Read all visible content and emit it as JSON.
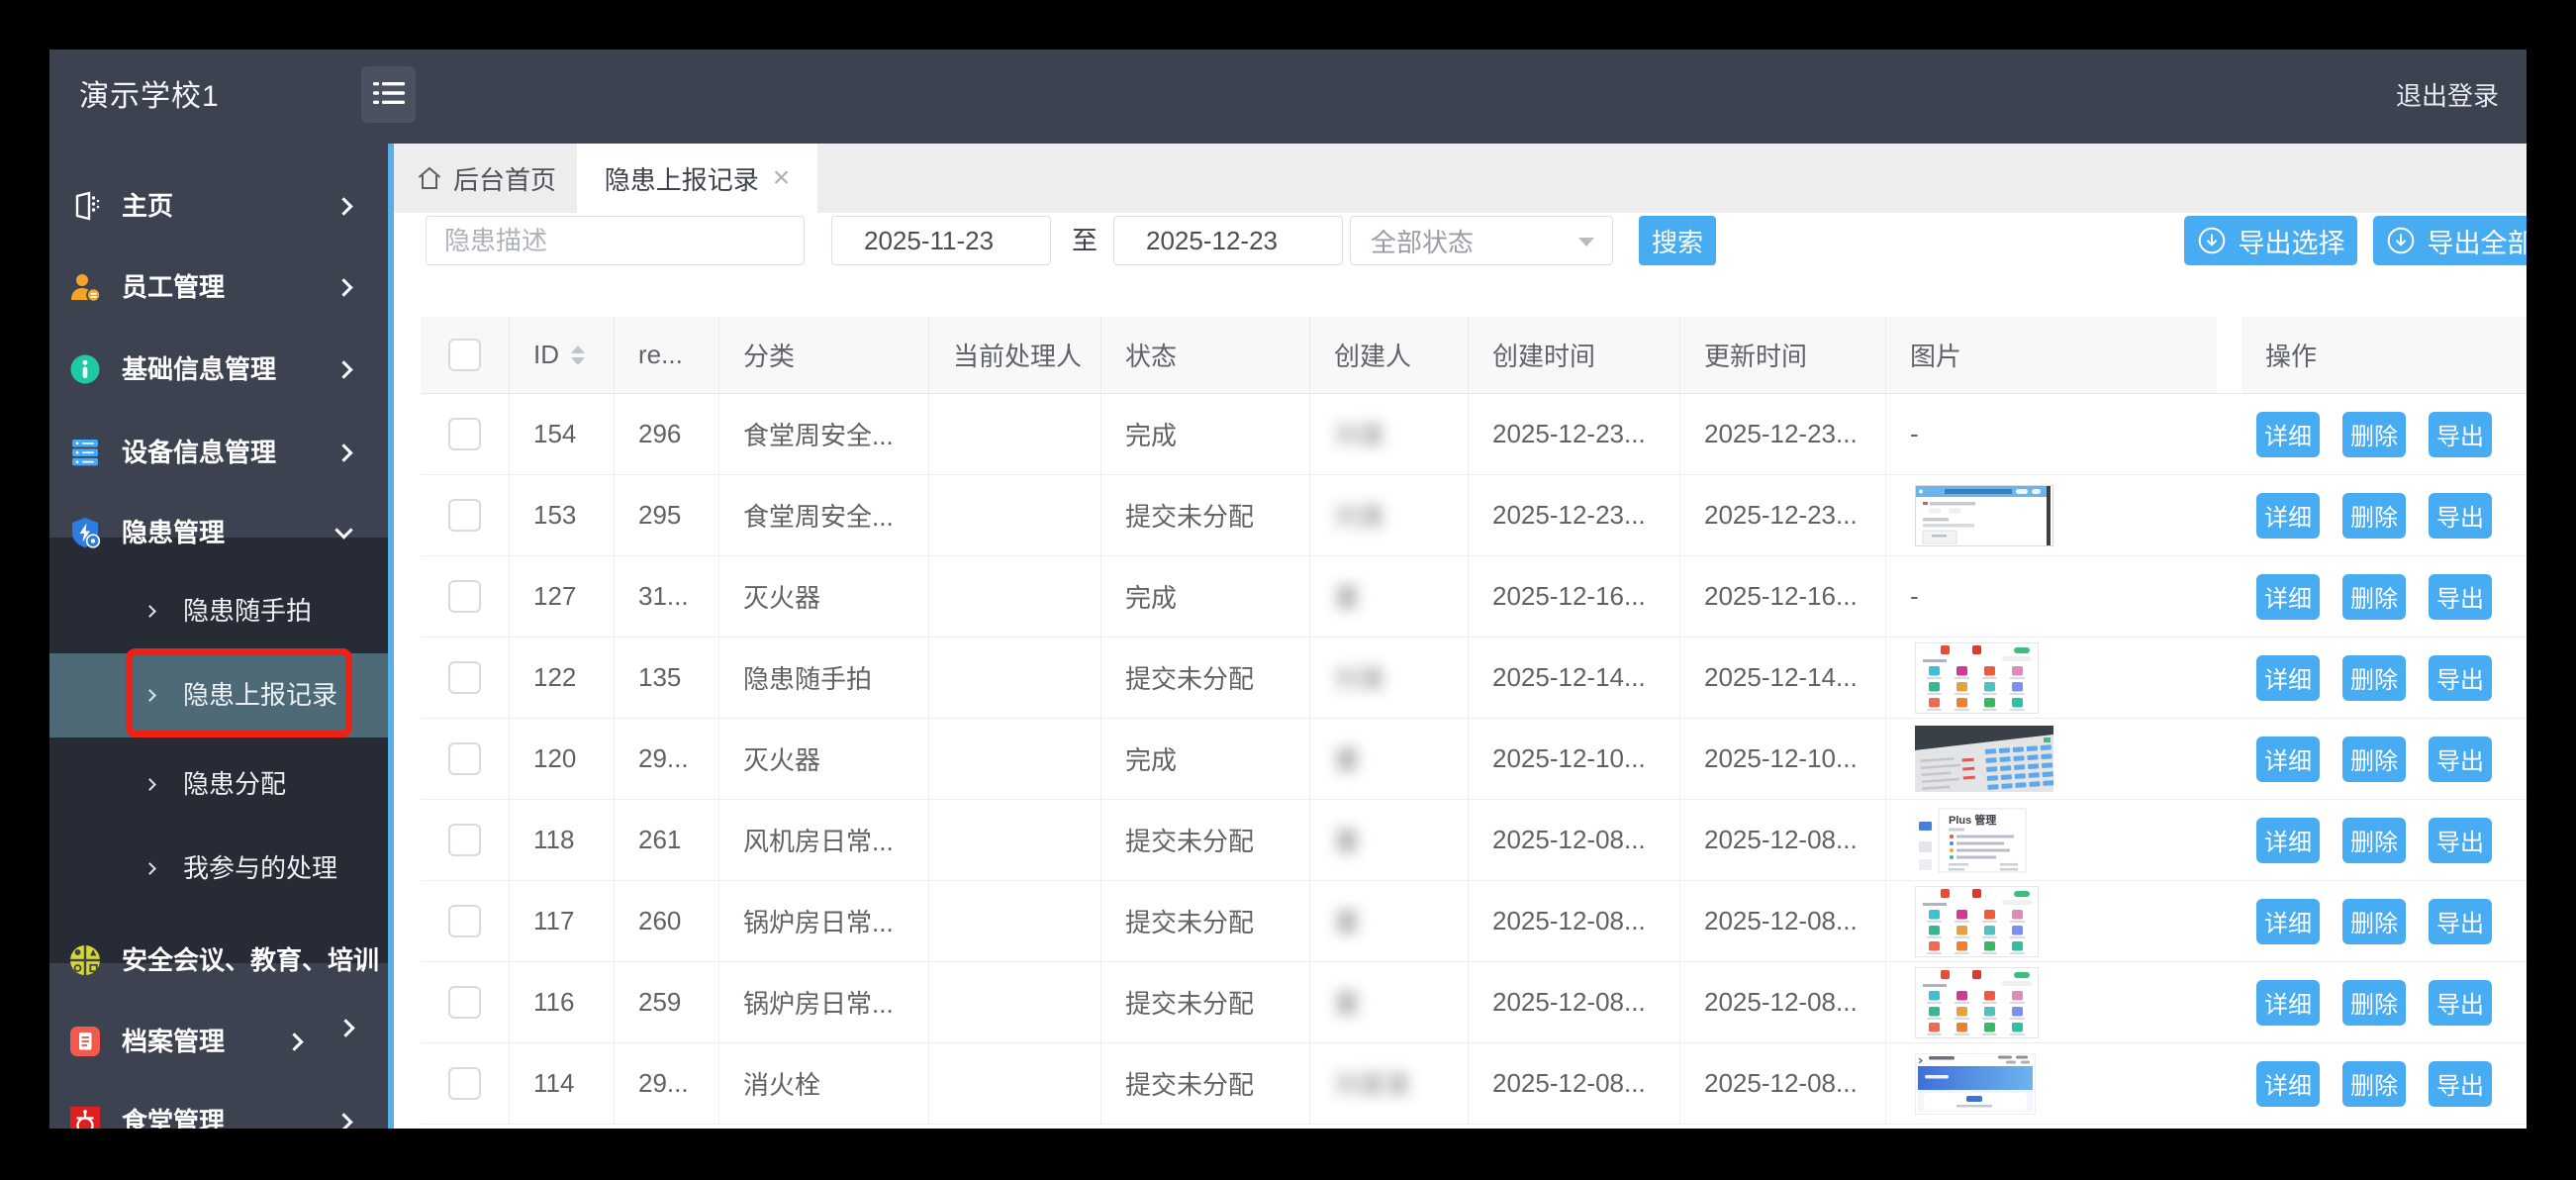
{
  "app": {
    "logout_label": "退出登录"
  },
  "sidebar": {
    "title": "演示学校1",
    "menu": [
      {
        "id": "home",
        "label": "主页",
        "icon": "pages-icon",
        "level": 1,
        "chevron": "right"
      },
      {
        "id": "staff",
        "label": "员工管理",
        "icon": "person-icon",
        "level": 1,
        "chevron": "right"
      },
      {
        "id": "baseinfo",
        "label": "基础信息管理",
        "icon": "info-icon",
        "level": 1,
        "chevron": "right"
      },
      {
        "id": "device",
        "label": "设备信息管理",
        "icon": "server-icon",
        "level": 1,
        "chevron": "right"
      },
      {
        "id": "hazard",
        "label": "隐患管理",
        "icon": "shield-icon",
        "level": 1,
        "chevron": "down",
        "expanded": true
      },
      {
        "id": "hazard-snap",
        "label": "隐患随手拍",
        "level": 2
      },
      {
        "id": "hazard-report",
        "label": "隐患上报记录",
        "level": 2,
        "active": true,
        "annotated": true
      },
      {
        "id": "hazard-assign",
        "label": "隐患分配",
        "level": 2
      },
      {
        "id": "hazard-mine",
        "label": "我参与的处理",
        "level": 2
      },
      {
        "id": "meeting",
        "label": "安全会议、教育、培训",
        "icon": "meeting-icon",
        "level": 1,
        "chevron": "right-below"
      },
      {
        "id": "archive",
        "label": "档案管理",
        "icon": "archive-icon",
        "level": 1,
        "chevron": "right-inset"
      },
      {
        "id": "canteen",
        "label": "食堂管理",
        "icon": "canteen-icon",
        "level": 1,
        "chevron": "right"
      }
    ]
  },
  "tabs": [
    {
      "label": "后台首页",
      "icon": "home-icon",
      "active": false,
      "closable": false
    },
    {
      "label": "隐患上报记录",
      "active": true,
      "closable": true
    }
  ],
  "filters": {
    "keyword_placeholder": "隐患描述",
    "date_from": "2025-11-23",
    "date_separator": "至",
    "date_to": "2025-12-23",
    "status_value": "全部状态",
    "search_label": "搜索"
  },
  "export_buttons": [
    {
      "label": "导出选择"
    },
    {
      "label": "导出全部"
    }
  ],
  "table": {
    "columns": [
      "",
      "ID",
      "re...",
      "分类",
      "当前处理人",
      "状态",
      "创建人",
      "创建时间",
      "更新时间",
      "图片",
      "操作"
    ],
    "action_labels": [
      "详细",
      "删除",
      "导出"
    ],
    "no_image_placeholder": "-",
    "rows": [
      {
        "id": "154",
        "re": "296",
        "category": "食堂周安全...",
        "handler": "",
        "status": "完成",
        "creator": "刘某",
        "created": "2025-12-23...",
        "updated": "2025-12-23...",
        "image": "none"
      },
      {
        "id": "153",
        "re": "295",
        "category": "食堂周安全...",
        "handler": "",
        "status": "提交未分配",
        "creator": "刘某",
        "created": "2025-12-23...",
        "updated": "2025-12-23...",
        "image": "form-screenshot"
      },
      {
        "id": "127",
        "re": "31...",
        "category": "灭火器",
        "handler": "",
        "status": "完成",
        "creator": "董",
        "created": "2025-12-16...",
        "updated": "2025-12-16...",
        "image": "none"
      },
      {
        "id": "122",
        "re": "135",
        "category": "隐患随手拍",
        "handler": "",
        "status": "提交未分配",
        "creator": "刘某",
        "created": "2025-12-14...",
        "updated": "2025-12-14...",
        "image": "app-grid"
      },
      {
        "id": "120",
        "re": "29...",
        "category": "灭火器",
        "handler": "",
        "status": "完成",
        "creator": "董",
        "created": "2025-12-10...",
        "updated": "2025-12-10...",
        "image": "photo"
      },
      {
        "id": "118",
        "re": "261",
        "category": "风机房日常...",
        "handler": "",
        "status": "提交未分配",
        "creator": "董",
        "created": "2025-12-08...",
        "updated": "2025-12-08...",
        "image": "doc",
        "image_text": "Plus 管理"
      },
      {
        "id": "117",
        "re": "260",
        "category": "锅炉房日常...",
        "handler": "",
        "status": "提交未分配",
        "creator": "董",
        "created": "2025-12-08...",
        "updated": "2025-12-08...",
        "image": "app-grid"
      },
      {
        "id": "116",
        "re": "259",
        "category": "锅炉房日常...",
        "handler": "",
        "status": "提交未分配",
        "creator": "董",
        "created": "2025-12-08...",
        "updated": "2025-12-08...",
        "image": "app-grid"
      },
      {
        "id": "114",
        "re": "29...",
        "category": "消火栓",
        "handler": "",
        "status": "提交未分配",
        "creator": "刘某某",
        "created": "2025-12-08...",
        "updated": "2025-12-08...",
        "image": "blue-banner"
      }
    ]
  },
  "colors": {
    "accent_blue": "#47acf2",
    "sidebar_dark": "#3c4250",
    "submenu_dark": "#262b36",
    "active_item": "#4e6a77",
    "annotation_red": "#ee2117",
    "strip_blue": "#57afe8"
  }
}
